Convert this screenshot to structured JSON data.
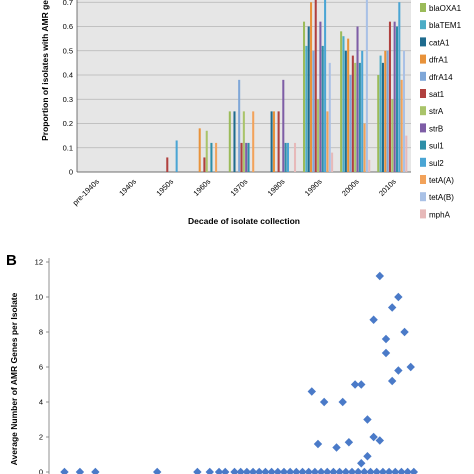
{
  "panel_b_letter": "B",
  "chart_data": [
    {
      "type": "bar",
      "xlabel": "Decade of isolate collection",
      "ylabel": "Proportion of isolates with AMR ge",
      "ylim": [
        0,
        0.8
      ],
      "yticks": [
        "0",
        "0.1",
        "0.2",
        "0.3",
        "0.4",
        "0.5",
        "0.6",
        "0.7"
      ],
      "grid": true,
      "legend_position": "right",
      "categories": [
        "pre-1940s",
        "1940s",
        "1950s",
        "1960s",
        "1970s",
        "1980s",
        "1990s",
        "2000s",
        "2010s"
      ],
      "series": [
        {
          "name": "blaOXA1",
          "color": "#9bbb59",
          "values": [
            0,
            0,
            0,
            0,
            0.25,
            0,
            0.62,
            0.58,
            0.4
          ]
        },
        {
          "name": "blaTEM1",
          "color": "#4bacc6",
          "values": [
            0,
            0,
            0,
            0,
            0,
            0,
            0.52,
            0.56,
            0.48
          ]
        },
        {
          "name": "catA1",
          "color": "#1f6b8e",
          "values": [
            0,
            0,
            0,
            0,
            0.25,
            0.25,
            0.6,
            0.5,
            0.45
          ]
        },
        {
          "name": "dfrA1",
          "color": "#e8923a",
          "values": [
            0,
            0,
            0,
            0.18,
            0,
            0.25,
            0.7,
            0.55,
            0.5
          ]
        },
        {
          "name": "dfrA14",
          "color": "#7fa7d8",
          "values": [
            0,
            0,
            0,
            0,
            0.38,
            0,
            0.5,
            0.4,
            0.5
          ]
        },
        {
          "name": "sat1",
          "color": "#b0403e",
          "values": [
            0,
            0,
            0.06,
            0.06,
            0.12,
            0.25,
            0.8,
            0.48,
            0.62
          ]
        },
        {
          "name": "strA",
          "color": "#a9c46a",
          "values": [
            0,
            0,
            0,
            0.17,
            0.25,
            0,
            0.3,
            0.45,
            0.3
          ]
        },
        {
          "name": "strB",
          "color": "#7e5da6",
          "values": [
            0,
            0,
            0,
            0,
            0.12,
            0.38,
            0.62,
            0.6,
            0.62
          ]
        },
        {
          "name": "sul1",
          "color": "#2e8fa8",
          "values": [
            0,
            0,
            0,
            0.12,
            0.12,
            0.12,
            0.52,
            0.45,
            0.6
          ]
        },
        {
          "name": "sul2",
          "color": "#4aa5d4",
          "values": [
            0,
            0,
            0.13,
            0,
            0,
            0.12,
            0.73,
            0.5,
            0.7
          ]
        },
        {
          "name": "tetA(A)",
          "color": "#f2a25a",
          "values": [
            0,
            0,
            0,
            0.12,
            0.25,
            0,
            0.25,
            0.2,
            0.38
          ]
        },
        {
          "name": "tetA(B)",
          "color": "#a9c1e6",
          "values": [
            0,
            0,
            0,
            0,
            0,
            0,
            0.45,
            0.72,
            0.5
          ]
        },
        {
          "name": "mphA",
          "color": "#e7b9b9",
          "values": [
            0,
            0,
            0,
            0,
            0,
            0.12,
            0.08,
            0.05,
            0.15
          ]
        }
      ]
    },
    {
      "type": "scatter",
      "ylabel": "Average Number of AMR Genes per Isolate",
      "ylim": [
        0,
        12
      ],
      "yticks": [
        "0",
        "2",
        "4",
        "6",
        "8",
        "10",
        "12"
      ],
      "grid": false,
      "marker": "diamond",
      "marker_color": "#4a7ac8",
      "x": [
        1905,
        1910,
        1915,
        1935,
        1948,
        1952,
        1955,
        1957,
        1960,
        1962,
        1964,
        1966,
        1968,
        1970,
        1972,
        1974,
        1976,
        1978,
        1980,
        1982,
        1984,
        1986,
        1988,
        1990,
        1992,
        1994,
        1996,
        1998,
        2000,
        2002,
        2004,
        2006,
        2008,
        2010,
        2012,
        2014,
        2016,
        2018,
        1985,
        1987,
        1989,
        1993,
        1995,
        1997,
        1999,
        2001,
        2003,
        2005,
        2007,
        2009,
        2011,
        2013,
        2015,
        2017,
        2013,
        2009,
        2011,
        2005,
        2007,
        2003,
        2001
      ],
      "y": [
        0,
        0,
        0,
        0,
        0,
        0,
        0,
        0,
        0,
        0,
        0,
        0,
        0,
        0,
        0,
        0,
        0,
        0,
        0,
        0,
        0,
        0,
        0,
        0,
        0,
        0,
        0,
        0,
        0,
        0,
        0,
        0,
        0,
        0,
        0,
        0,
        0,
        0,
        4.6,
        1.6,
        4.0,
        1.4,
        4.0,
        1.7,
        5.0,
        5.0,
        3.0,
        8.7,
        11.2,
        6.8,
        9.4,
        10.0,
        8.0,
        6.0,
        5.8,
        7.6,
        5.2,
        2.0,
        1.8,
        0.9,
        0.5
      ]
    }
  ]
}
